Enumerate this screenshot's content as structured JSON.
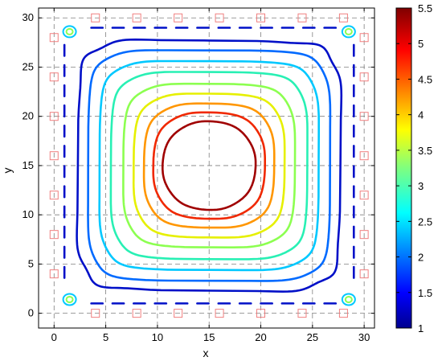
{
  "chart_data": {
    "type": "contour",
    "xlabel": "x",
    "ylabel": "y",
    "xlim": [
      -1.5,
      31
    ],
    "ylim": [
      -1.5,
      31
    ],
    "x_ticks": [
      0,
      5,
      10,
      15,
      20,
      25,
      30
    ],
    "y_ticks": [
      0,
      5,
      10,
      15,
      20,
      25,
      30
    ],
    "grid": "dashed",
    "colorbar": {
      "min": 1,
      "max": 5.5,
      "ticks": [
        1,
        1.5,
        2,
        2.5,
        3,
        3.5,
        4,
        4.5,
        5,
        5.5
      ],
      "colormap": "jet"
    },
    "contours": [
      {
        "level": 1.2,
        "color": "#0010c8",
        "half_width": 12.7
      },
      {
        "level": 1.8,
        "color": "#006aff",
        "half_width": 11.7
      },
      {
        "level": 2.4,
        "color": "#00c8ff",
        "half_width": 10.6
      },
      {
        "level": 2.9,
        "color": "#28f0b4",
        "half_width": 9.5
      },
      {
        "level": 3.3,
        "color": "#8cff50",
        "half_width": 8.3
      },
      {
        "level": 3.7,
        "color": "#e6f000",
        "half_width": 7.3
      },
      {
        "level": 4.3,
        "color": "#ff9600",
        "half_width": 6.3
      },
      {
        "level": 4.8,
        "color": "#f02800",
        "half_width": 5.4
      },
      {
        "level": 5.3,
        "color": "#a00000",
        "half_width": 4.5
      }
    ],
    "center": [
      15,
      15
    ],
    "boundary_markers": {
      "color": "#f08080",
      "points": [
        [
          4,
          30
        ],
        [
          8,
          30
        ],
        [
          12,
          30
        ],
        [
          16,
          30
        ],
        [
          20,
          30
        ],
        [
          24,
          30
        ],
        [
          28,
          30
        ],
        [
          4,
          0
        ],
        [
          8,
          0
        ],
        [
          12,
          0
        ],
        [
          16,
          0
        ],
        [
          20,
          0
        ],
        [
          24,
          0
        ],
        [
          28,
          0
        ],
        [
          0,
          4
        ],
        [
          0,
          8
        ],
        [
          0,
          12
        ],
        [
          0,
          16
        ],
        [
          0,
          20
        ],
        [
          0,
          24
        ],
        [
          0,
          28
        ],
        [
          30,
          4
        ],
        [
          30,
          8
        ],
        [
          30,
          12
        ],
        [
          30,
          16
        ],
        [
          30,
          20
        ],
        [
          30,
          24
        ],
        [
          30,
          28
        ]
      ]
    }
  }
}
